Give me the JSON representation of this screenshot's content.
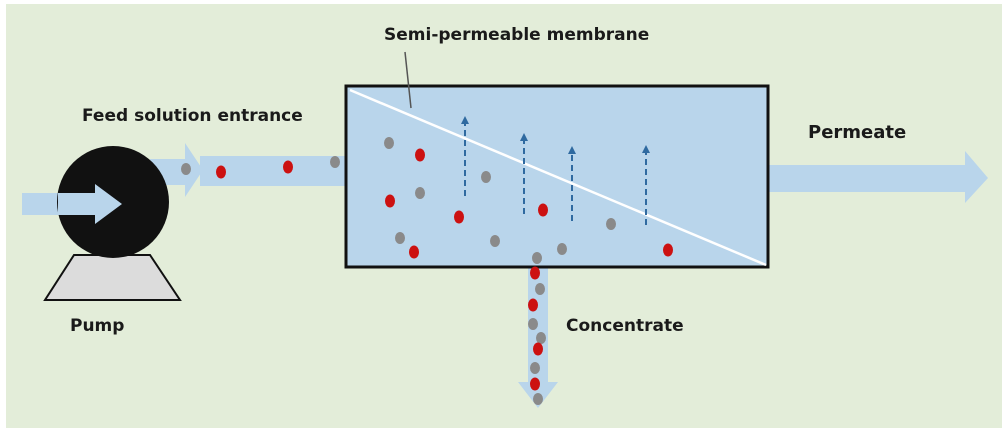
{
  "labels": {
    "membrane": "Semi-permeable membrane",
    "feed": "Feed solution entrance",
    "permeate": "Permeate",
    "pump": "Pump",
    "concentrate": "Concentrate"
  },
  "colors": {
    "background": "#e3edd9",
    "flow": "#b9d5eb",
    "vessel": "#b9d5eb",
    "pump_body": "#111111",
    "pump_base": "#dcdcdc",
    "particle_red": "#cc1111",
    "particle_gray": "#8a8a8a",
    "permeation_arrow": "#2f6aa0",
    "membrane_line": "#ffffff"
  }
}
